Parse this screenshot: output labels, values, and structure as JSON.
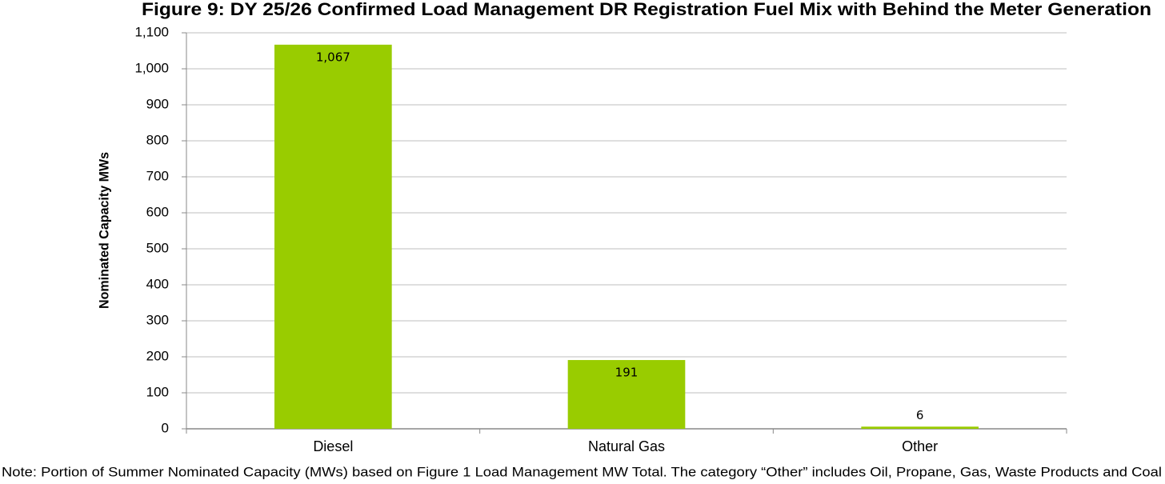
{
  "chart_data": {
    "type": "bar",
    "title": "Figure 9:  DY 25/26 Confirmed Load Management DR Registration Fuel Mix with Behind the Meter Generation",
    "y_label": "Nominated Capacity MWs",
    "categories": [
      "Diesel",
      "Natural Gas",
      "Other"
    ],
    "values": [
      1067,
      191,
      6
    ],
    "value_labels": [
      "1,067",
      "191",
      "6"
    ],
    "color": "#99cc00",
    "ylim": [
      0,
      1100
    ],
    "yticks": [
      0,
      100,
      200,
      300,
      400,
      500,
      600,
      700,
      800,
      900,
      {
        "value": 1000,
        "label": "1,000"
      },
      {
        "value": 1100,
        "label": "1,100"
      }
    ],
    "grid": true,
    "note": "Note: Portion of Summer Nominated Capacity (MWs) based on Figure 1 Load Management MW Total. The category “Other” includes Oil, Propane, Gas, Waste Products and Coal"
  }
}
